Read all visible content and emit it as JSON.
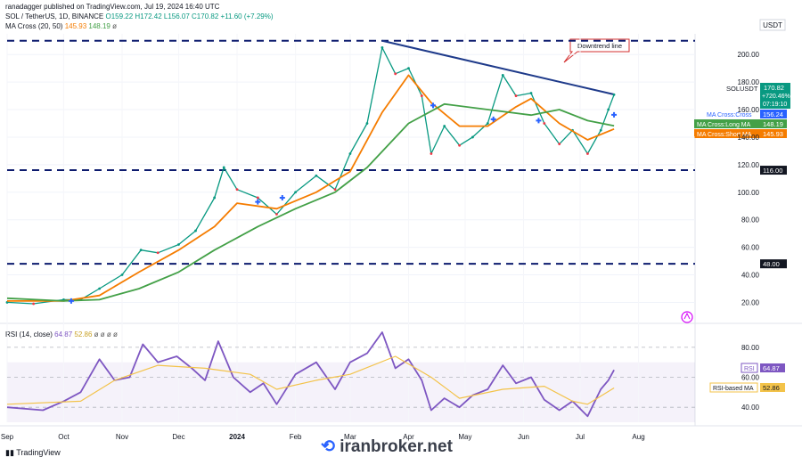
{
  "header": {
    "published": "ranadagger published on TradingView.com, Jul 19, 2024 16:40 UTC",
    "symbol": "SOL / TetherUS, 1D, BINANCE",
    "ohlc": "O159.22  H172.42  L156.07  C170.82",
    "change": "+11.60 (+7.29%)",
    "ma_label": "MA Cross (20, 50)",
    "ma_short": "145.93",
    "ma_long": "148.19",
    "ma_suffix": "ø",
    "rsi_label": "RSI (14, close)",
    "rsi_value": "64.87",
    "rsi_ma_value": "52.86",
    "rsi_suffix": "ø ø ø ø"
  },
  "currency": "USDT",
  "colors": {
    "up": "#089981",
    "down": "#f23645",
    "ma_short": "#f57c00",
    "ma_long": "#43a047",
    "trend": "#1e3a8a",
    "rsi": "#7e57c2",
    "rsi_ma": "#f3c34a",
    "cross_marker": "#2962ff"
  },
  "annotations": {
    "downtrend_label": "Downtrend line"
  },
  "price_labels": {
    "pair": "SOLUSDT",
    "price": "170.82",
    "pct": "+720.46%",
    "countdown": "07:19:10",
    "cross": "MA Cross:Cross",
    "cross_val": "156.24",
    "long": "MA Cross:Long MA",
    "long_val": "148.19",
    "short": "MA Cross:Short MA",
    "short_val": "145.93",
    "level_high": "116.00",
    "level_low": "48.00",
    "rsi_tag": "RSI",
    "rsi_val": "64.87",
    "rsi_ma_tag": "RSI-based MA",
    "rsi_ma_val": "52.86"
  },
  "footer": {
    "brand": "TradingView",
    "watermark": "iranbroker.net"
  },
  "chart_data": {
    "type": "line",
    "x_ticks": [
      "Sep",
      "Oct",
      "Nov",
      "Dec",
      "2024",
      "Feb",
      "Mar",
      "Apr",
      "May",
      "Jun",
      "Jul",
      "Aug"
    ],
    "y_ticks": [
      20,
      40,
      60,
      80,
      100,
      120,
      140,
      160,
      180,
      200
    ],
    "ylim": [
      8,
      215
    ],
    "horizontal_levels": [
      210,
      116,
      48
    ],
    "downtrend_line": {
      "from": [
        "2024-03-18",
        210
      ],
      "to": [
        "2024-07-19",
        171
      ]
    },
    "series": [
      {
        "name": "SOLUSDT",
        "values": [
          {
            "x": "2023-09-01",
            "y": 20
          },
          {
            "x": "2023-09-15",
            "y": 19
          },
          {
            "x": "2023-10-01",
            "y": 22
          },
          {
            "x": "2023-10-10",
            "y": 22
          },
          {
            "x": "2023-10-20",
            "y": 30
          },
          {
            "x": "2023-11-01",
            "y": 40
          },
          {
            "x": "2023-11-11",
            "y": 58
          },
          {
            "x": "2023-11-20",
            "y": 56
          },
          {
            "x": "2023-12-01",
            "y": 62
          },
          {
            "x": "2023-12-10",
            "y": 72
          },
          {
            "x": "2023-12-20",
            "y": 96
          },
          {
            "x": "2023-12-25",
            "y": 118
          },
          {
            "x": "2024-01-01",
            "y": 102
          },
          {
            "x": "2024-01-12",
            "y": 96
          },
          {
            "x": "2024-01-22",
            "y": 84
          },
          {
            "x": "2024-02-01",
            "y": 100
          },
          {
            "x": "2024-02-12",
            "y": 112
          },
          {
            "x": "2024-02-22",
            "y": 102
          },
          {
            "x": "2024-03-01",
            "y": 128
          },
          {
            "x": "2024-03-10",
            "y": 150
          },
          {
            "x": "2024-03-18",
            "y": 205
          },
          {
            "x": "2024-03-25",
            "y": 186
          },
          {
            "x": "2024-04-01",
            "y": 190
          },
          {
            "x": "2024-04-08",
            "y": 170
          },
          {
            "x": "2024-04-13",
            "y": 128
          },
          {
            "x": "2024-04-20",
            "y": 148
          },
          {
            "x": "2024-04-28",
            "y": 134
          },
          {
            "x": "2024-05-05",
            "y": 140
          },
          {
            "x": "2024-05-13",
            "y": 150
          },
          {
            "x": "2024-05-21",
            "y": 185
          },
          {
            "x": "2024-05-28",
            "y": 170
          },
          {
            "x": "2024-06-05",
            "y": 172
          },
          {
            "x": "2024-06-12",
            "y": 150
          },
          {
            "x": "2024-06-20",
            "y": 135
          },
          {
            "x": "2024-06-27",
            "y": 145
          },
          {
            "x": "2024-07-05",
            "y": 128
          },
          {
            "x": "2024-07-12",
            "y": 145
          },
          {
            "x": "2024-07-16",
            "y": 160
          },
          {
            "x": "2024-07-19",
            "y": 170.82
          }
        ]
      },
      {
        "name": "MA Cross:Short MA",
        "values": [
          {
            "x": "2023-09-01",
            "y": 21
          },
          {
            "x": "2023-10-01",
            "y": 21
          },
          {
            "x": "2023-10-20",
            "y": 25
          },
          {
            "x": "2023-11-10",
            "y": 42
          },
          {
            "x": "2023-12-01",
            "y": 58
          },
          {
            "x": "2023-12-20",
            "y": 75
          },
          {
            "x": "2024-01-01",
            "y": 92
          },
          {
            "x": "2024-01-22",
            "y": 88
          },
          {
            "x": "2024-02-12",
            "y": 100
          },
          {
            "x": "2024-03-01",
            "y": 115
          },
          {
            "x": "2024-03-18",
            "y": 158
          },
          {
            "x": "2024-04-01",
            "y": 185
          },
          {
            "x": "2024-04-13",
            "y": 165
          },
          {
            "x": "2024-04-28",
            "y": 148
          },
          {
            "x": "2024-05-13",
            "y": 148
          },
          {
            "x": "2024-05-28",
            "y": 162
          },
          {
            "x": "2024-06-05",
            "y": 168
          },
          {
            "x": "2024-06-20",
            "y": 150
          },
          {
            "x": "2024-07-05",
            "y": 138
          },
          {
            "x": "2024-07-19",
            "y": 145.93
          }
        ]
      },
      {
        "name": "MA Cross:Long MA",
        "values": [
          {
            "x": "2023-09-01",
            "y": 23
          },
          {
            "x": "2023-10-01",
            "y": 21
          },
          {
            "x": "2023-10-20",
            "y": 22
          },
          {
            "x": "2023-11-10",
            "y": 30
          },
          {
            "x": "2023-12-01",
            "y": 42
          },
          {
            "x": "2023-12-20",
            "y": 58
          },
          {
            "x": "2024-01-12",
            "y": 75
          },
          {
            "x": "2024-02-01",
            "y": 88
          },
          {
            "x": "2024-02-22",
            "y": 100
          },
          {
            "x": "2024-03-10",
            "y": 118
          },
          {
            "x": "2024-04-01",
            "y": 150
          },
          {
            "x": "2024-04-20",
            "y": 164
          },
          {
            "x": "2024-05-13",
            "y": 160
          },
          {
            "x": "2024-06-05",
            "y": 156
          },
          {
            "x": "2024-06-20",
            "y": 160
          },
          {
            "x": "2024-07-05",
            "y": 152
          },
          {
            "x": "2024-07-19",
            "y": 148.19
          }
        ]
      }
    ],
    "cross_markers": [
      {
        "x": "2023-10-05",
        "y": 21
      },
      {
        "x": "2024-01-12",
        "y": 93
      },
      {
        "x": "2024-01-25",
        "y": 96
      },
      {
        "x": "2024-04-14",
        "y": 163
      },
      {
        "x": "2024-05-16",
        "y": 153
      },
      {
        "x": "2024-06-09",
        "y": 152
      },
      {
        "x": "2024-07-19",
        "y": 156.24
      }
    ],
    "rsi": {
      "ylim": [
        30,
        93
      ],
      "y_ticks": [
        40,
        60,
        80
      ],
      "band": [
        30,
        70
      ],
      "series": [
        {
          "name": "RSI",
          "values": [
            {
              "x": "2023-09-01",
              "y": 40
            },
            {
              "x": "2023-09-20",
              "y": 38
            },
            {
              "x": "2023-10-01",
              "y": 44
            },
            {
              "x": "2023-10-10",
              "y": 50
            },
            {
              "x": "2023-10-20",
              "y": 72
            },
            {
              "x": "2023-10-28",
              "y": 58
            },
            {
              "x": "2023-11-05",
              "y": 60
            },
            {
              "x": "2023-11-12",
              "y": 82
            },
            {
              "x": "2023-11-20",
              "y": 70
            },
            {
              "x": "2023-11-30",
              "y": 74
            },
            {
              "x": "2023-12-08",
              "y": 66
            },
            {
              "x": "2023-12-15",
              "y": 58
            },
            {
              "x": "2023-12-22",
              "y": 84
            },
            {
              "x": "2023-12-30",
              "y": 60
            },
            {
              "x": "2024-01-08",
              "y": 50
            },
            {
              "x": "2024-01-15",
              "y": 56
            },
            {
              "x": "2024-01-22",
              "y": 42
            },
            {
              "x": "2024-02-01",
              "y": 62
            },
            {
              "x": "2024-02-12",
              "y": 70
            },
            {
              "x": "2024-02-22",
              "y": 52
            },
            {
              "x": "2024-03-01",
              "y": 70
            },
            {
              "x": "2024-03-10",
              "y": 76
            },
            {
              "x": "2024-03-18",
              "y": 90
            },
            {
              "x": "2024-03-25",
              "y": 66
            },
            {
              "x": "2024-04-01",
              "y": 72
            },
            {
              "x": "2024-04-08",
              "y": 58
            },
            {
              "x": "2024-04-13",
              "y": 38
            },
            {
              "x": "2024-04-20",
              "y": 46
            },
            {
              "x": "2024-04-28",
              "y": 40
            },
            {
              "x": "2024-05-05",
              "y": 48
            },
            {
              "x": "2024-05-13",
              "y": 52
            },
            {
              "x": "2024-05-21",
              "y": 68
            },
            {
              "x": "2024-05-28",
              "y": 56
            },
            {
              "x": "2024-06-05",
              "y": 60
            },
            {
              "x": "2024-06-12",
              "y": 45
            },
            {
              "x": "2024-06-20",
              "y": 38
            },
            {
              "x": "2024-06-27",
              "y": 44
            },
            {
              "x": "2024-07-05",
              "y": 34
            },
            {
              "x": "2024-07-12",
              "y": 52
            },
            {
              "x": "2024-07-16",
              "y": 58
            },
            {
              "x": "2024-07-19",
              "y": 64.87
            }
          ]
        },
        {
          "name": "RSI-based MA",
          "values": [
            {
              "x": "2023-09-01",
              "y": 42
            },
            {
              "x": "2023-10-10",
              "y": 44
            },
            {
              "x": "2023-10-28",
              "y": 58
            },
            {
              "x": "2023-11-20",
              "y": 68
            },
            {
              "x": "2023-12-15",
              "y": 66
            },
            {
              "x": "2024-01-08",
              "y": 62
            },
            {
              "x": "2024-01-22",
              "y": 52
            },
            {
              "x": "2024-02-12",
              "y": 58
            },
            {
              "x": "2024-03-01",
              "y": 62
            },
            {
              "x": "2024-03-25",
              "y": 74
            },
            {
              "x": "2024-04-13",
              "y": 60
            },
            {
              "x": "2024-04-28",
              "y": 46
            },
            {
              "x": "2024-05-21",
              "y": 52
            },
            {
              "x": "2024-06-12",
              "y": 54
            },
            {
              "x": "2024-06-27",
              "y": 44
            },
            {
              "x": "2024-07-05",
              "y": 42
            },
            {
              "x": "2024-07-19",
              "y": 52.86
            }
          ]
        }
      ]
    }
  }
}
